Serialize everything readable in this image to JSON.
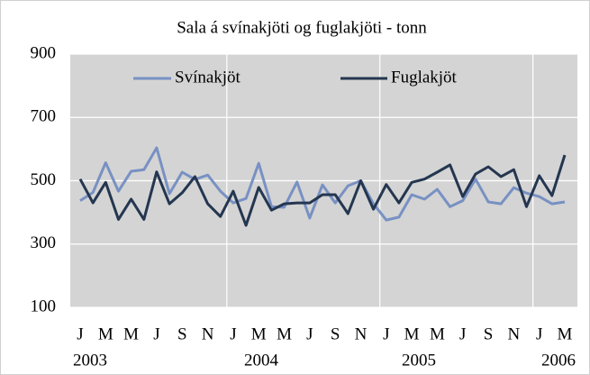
{
  "chart_data": {
    "type": "line",
    "title": "Sala á svínakjöti og fuglakjöti - tonn",
    "categories": [
      "J",
      null,
      "M",
      null,
      "M",
      null,
      "J",
      null,
      "S",
      null,
      "N",
      null,
      "J",
      null,
      "M",
      null,
      "M",
      null,
      "J",
      null,
      "S",
      null,
      "N",
      null,
      "J",
      null,
      "M",
      null,
      "M",
      null,
      "J",
      null,
      "S",
      null,
      "N",
      null,
      "J",
      null,
      "M"
    ],
    "years": [
      "2003",
      "2004",
      "2005",
      "2006"
    ],
    "series": [
      {
        "name": "Svínakjöt",
        "color": "#7891c3",
        "values": [
          437,
          463,
          557,
          467,
          530,
          535,
          604,
          459,
          527,
          504,
          518,
          467,
          430,
          444,
          555,
          418,
          416,
          496,
          382,
          487,
          430,
          484,
          500,
          427,
          376,
          385,
          456,
          442,
          473,
          418,
          437,
          505,
          433,
          427,
          478,
          461,
          450,
          427,
          433
        ]
      },
      {
        "name": "Fuglakjöt",
        "color": "#243650",
        "values": [
          505,
          430,
          495,
          378,
          442,
          378,
          528,
          427,
          462,
          513,
          427,
          387,
          467,
          359,
          479,
          407,
          427,
          430,
          430,
          456,
          456,
          396,
          500,
          410,
          488,
          430,
          495,
          505,
          527,
          550,
          450,
          521,
          544,
          513,
          535,
          418,
          516,
          453,
          581
        ]
      }
    ],
    "ylim": [
      100,
      900
    ],
    "yticks": [
      100,
      300,
      500,
      700,
      900
    ],
    "grid": true,
    "legend": "upper center"
  }
}
